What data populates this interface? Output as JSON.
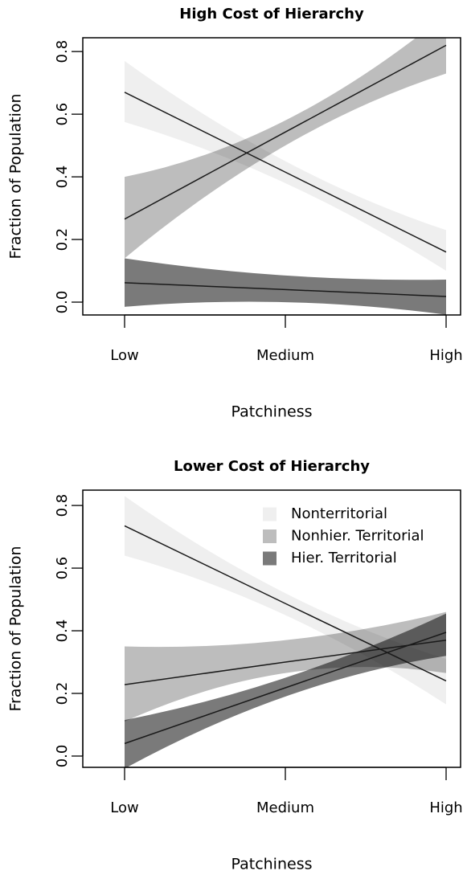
{
  "chart_data": [
    {
      "type": "line",
      "title": "High Cost of Hierarchy",
      "xlabel": "Patchiness",
      "ylabel": "Fraction of Population",
      "categories": [
        "Low",
        "Medium",
        "High"
      ],
      "ylim": [
        -0.041,
        0.844
      ],
      "yticks": [
        {
          "value": 0,
          "label": "0.0"
        },
        0.2,
        0.4,
        0.6,
        0.8
      ],
      "series": [
        {
          "color": "#efefef",
          "values": [
            0.67,
            0.415,
            0.16
          ],
          "lower": [
            0.575,
            0.38,
            0.1
          ],
          "upper": [
            0.77,
            0.45,
            0.23
          ]
        },
        {
          "color": "#bdbdbd",
          "values": [
            0.265,
            0.543,
            0.82
          ],
          "lower": [
            0.14,
            0.5,
            0.73
          ],
          "upper": [
            0.4,
            0.58,
            0.92
          ]
        },
        {
          "color": "#7a7a7a",
          "values": [
            0.062,
            0.04,
            0.018
          ],
          "lower": [
            -0.015,
            0.0,
            -0.04
          ],
          "upper": [
            0.14,
            0.085,
            0.072
          ]
        }
      ]
    },
    {
      "type": "line",
      "title": "Lower Cost of Hierarchy",
      "xlabel": "Patchiness",
      "ylabel": "Fraction of Population",
      "categories": [
        "Low",
        "Medium",
        "High"
      ],
      "ylim": [
        -0.036,
        0.849
      ],
      "yticks": [
        {
          "value": 0,
          "label": "0.0"
        },
        0.2,
        0.4,
        0.6,
        0.8
      ],
      "legend": "topright",
      "series": [
        {
          "name": "Nonterritorial",
          "color": "#efefef",
          "values": [
            0.735,
            0.487,
            0.24
          ],
          "lower": [
            0.64,
            0.45,
            0.165
          ],
          "upper": [
            0.83,
            0.52,
            0.31
          ]
        },
        {
          "name": "Nonhier. Territorial",
          "color": "#bdbdbd",
          "values": [
            0.228,
            0.3,
            0.37
          ],
          "lower": [
            0.11,
            0.265,
            0.265
          ],
          "upper": [
            0.35,
            0.37,
            0.46
          ]
        },
        {
          "name": "Hier. Territorial",
          "color": "#7a7a7a",
          "values": [
            0.04,
            0.218,
            0.395
          ],
          "lower": [
            -0.04,
            0.19,
            0.32
          ],
          "upper": [
            0.115,
            0.25,
            0.455
          ]
        }
      ]
    }
  ]
}
